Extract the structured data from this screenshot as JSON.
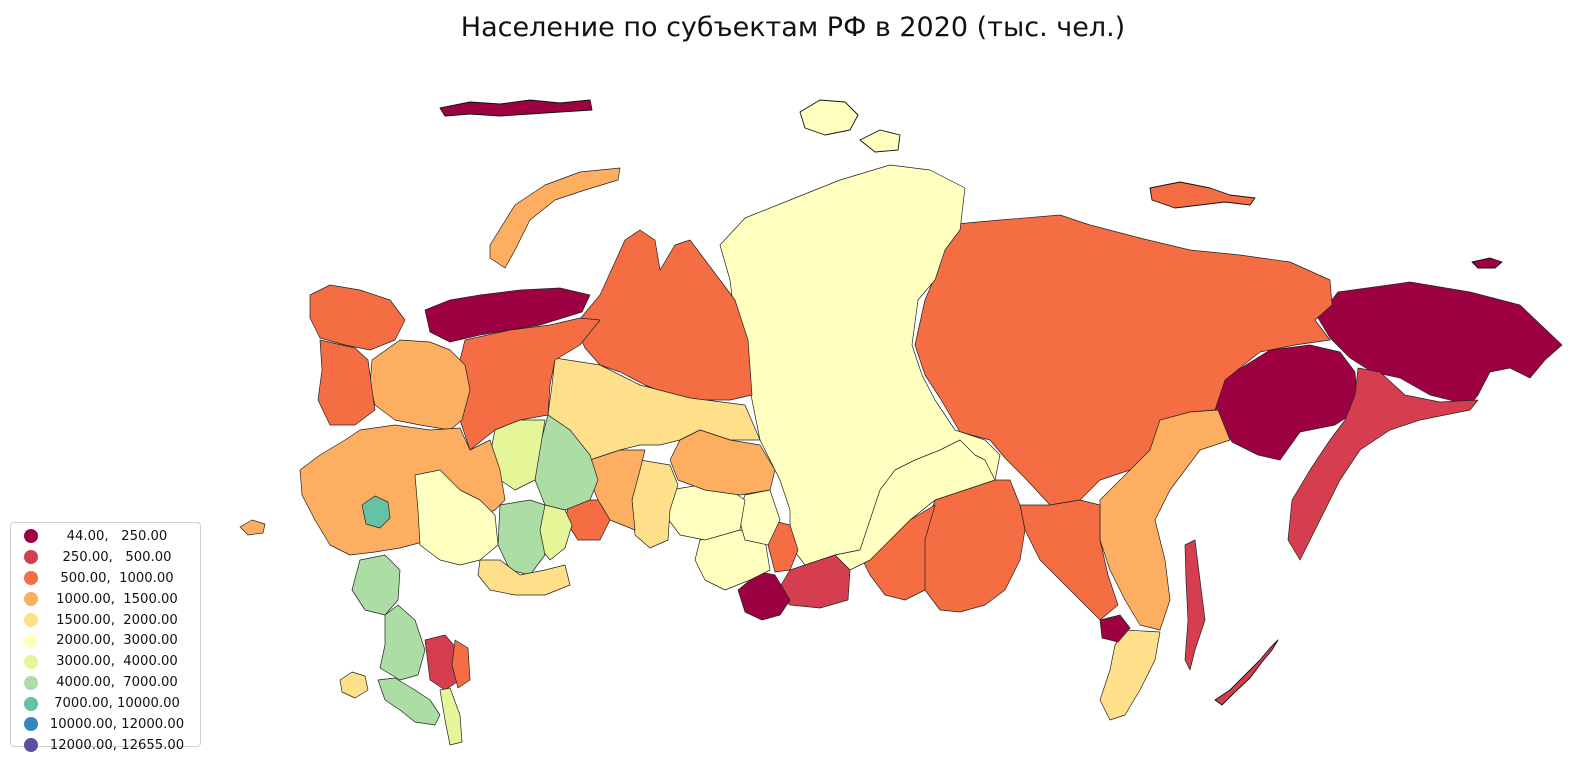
{
  "title": "Население по субъектам РФ в 2020 (тыс. чел.)",
  "legend": {
    "items": [
      {
        "label": "44.00,   250.00",
        "color": "#9e0142"
      },
      {
        "label": "250.00,   500.00",
        "color": "#d53e4f"
      },
      {
        "label": "500.00,  1000.00",
        "color": "#f46d43"
      },
      {
        "label": "1000.00,  1500.00",
        "color": "#fdae61"
      },
      {
        "label": "1500.00,  2000.00",
        "color": "#fee08b"
      },
      {
        "label": "2000.00,  3000.00",
        "color": "#ffffbf"
      },
      {
        "label": "3000.00,  4000.00",
        "color": "#e6f598"
      },
      {
        "label": "4000.00,  7000.00",
        "color": "#abdda4"
      },
      {
        "label": "7000.00, 10000.00",
        "color": "#66c2a5"
      },
      {
        "label": "10000.00, 12000.00",
        "color": "#3288bd"
      },
      {
        "label": "12000.00, 12655.00",
        "color": "#5e4fa2"
      }
    ]
  },
  "regions": [
    {
      "id": "chukotka",
      "cls": 0
    },
    {
      "id": "magadan",
      "cls": 0
    },
    {
      "id": "kamchatka",
      "cls": 1
    },
    {
      "id": "yakutia",
      "cls": 2
    },
    {
      "id": "krasnoyarsk",
      "cls": 5
    },
    {
      "id": "yamal",
      "cls": 2
    },
    {
      "id": "khmao",
      "cls": 4
    },
    {
      "id": "nenets",
      "cls": 0
    },
    {
      "id": "komi",
      "cls": 2
    },
    {
      "id": "arkhangelsk",
      "cls": 3
    },
    {
      "id": "murmansk",
      "cls": 2
    },
    {
      "id": "karelia",
      "cls": 2
    },
    {
      "id": "novaya-zemlya",
      "cls": 3
    },
    {
      "id": "khabarovsk",
      "cls": 3
    },
    {
      "id": "primorye",
      "cls": 4
    },
    {
      "id": "amur",
      "cls": 2
    },
    {
      "id": "zabaykalsky",
      "cls": 2
    },
    {
      "id": "buryatia",
      "cls": 2
    },
    {
      "id": "irkutsk",
      "cls": 5
    },
    {
      "id": "tomsk",
      "cls": 3
    },
    {
      "id": "tyumen",
      "cls": 3
    },
    {
      "id": "novosibirsk",
      "cls": 5
    },
    {
      "id": "omsk",
      "cls": 4
    },
    {
      "id": "kemerovo",
      "cls": 5
    },
    {
      "id": "altai-krai",
      "cls": 5
    },
    {
      "id": "altai-rep",
      "cls": 0
    },
    {
      "id": "tuva",
      "cls": 1
    },
    {
      "id": "khakassia",
      "cls": 2
    },
    {
      "id": "sverdlovsk",
      "cls": 7
    },
    {
      "id": "perm",
      "cls": 6
    },
    {
      "id": "bashkortostan",
      "cls": 7
    },
    {
      "id": "chelyabinsk",
      "cls": 6
    },
    {
      "id": "kurgan",
      "cls": 2
    },
    {
      "id": "orenburg",
      "cls": 4
    },
    {
      "id": "central",
      "cls": 3
    },
    {
      "id": "moscow",
      "cls": 8
    },
    {
      "id": "volga",
      "cls": 5
    },
    {
      "id": "krasnodar",
      "cls": 7
    },
    {
      "id": "rostov",
      "cls": 7
    },
    {
      "id": "kalmykia",
      "cls": 1
    },
    {
      "id": "astrakhan",
      "cls": 2
    },
    {
      "id": "dagestan",
      "cls": 6
    },
    {
      "id": "crimea",
      "cls": 4
    },
    {
      "id": "kaliningrad",
      "cls": 3
    },
    {
      "id": "sakhalin",
      "cls": 1
    },
    {
      "id": "jewish-ao",
      "cls": 0
    },
    {
      "id": "wrangel",
      "cls": 0
    },
    {
      "id": "novosibirsk-islands",
      "cls": 2
    },
    {
      "id": "severnaya-zemlya",
      "cls": 5
    },
    {
      "id": "franz-josef",
      "cls": 0
    }
  ]
}
